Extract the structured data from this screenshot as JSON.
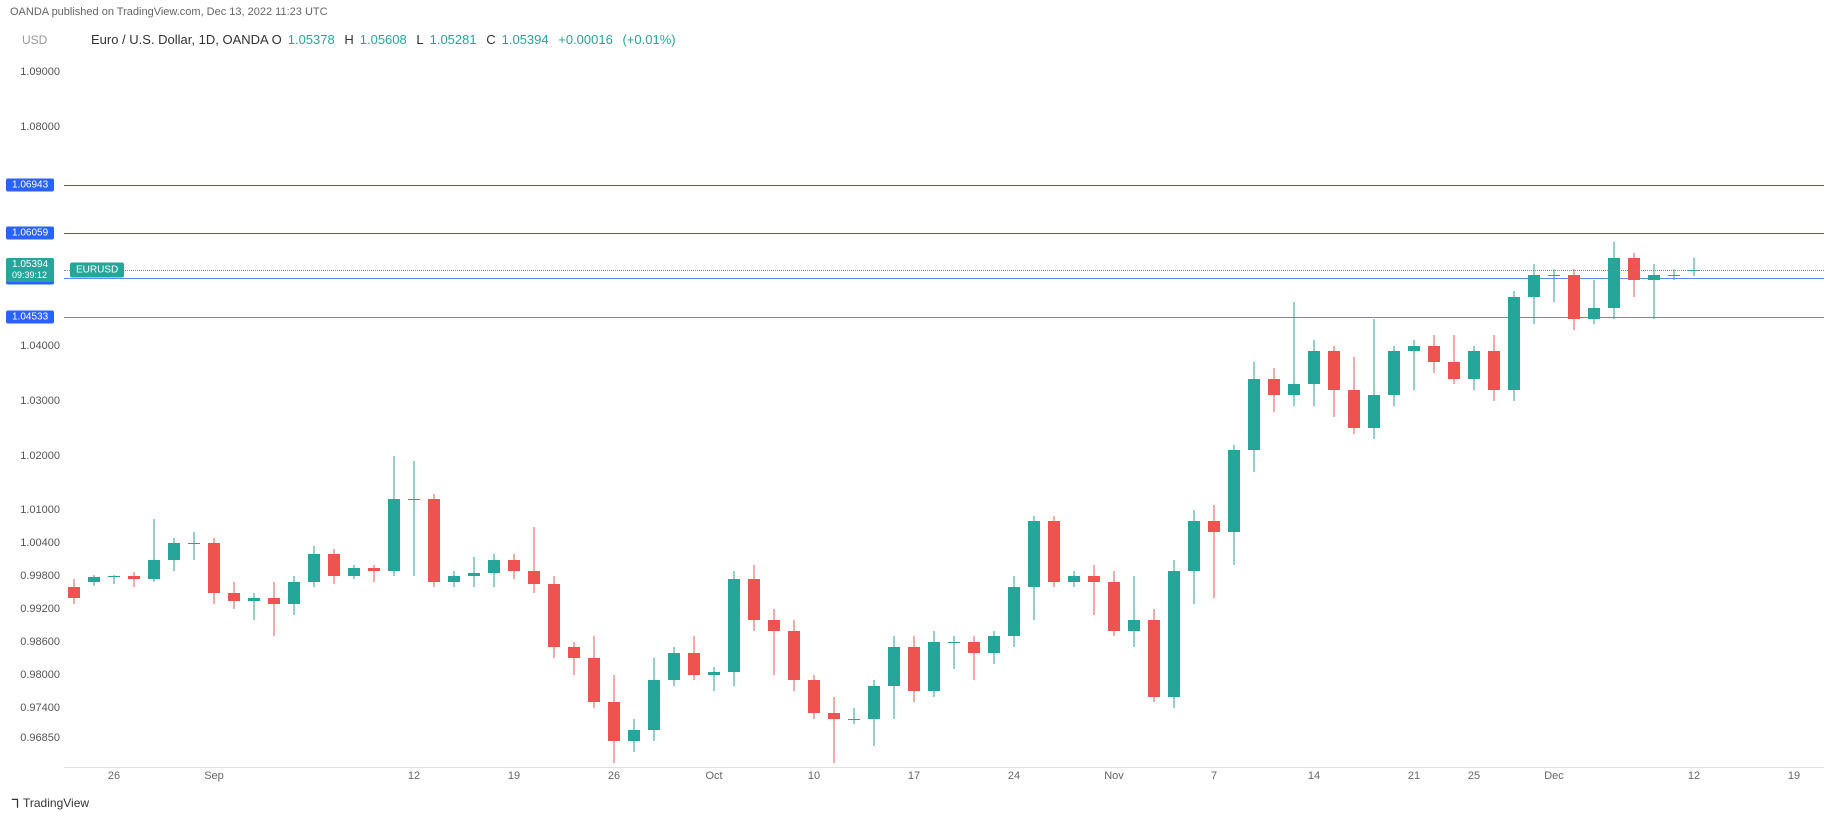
{
  "meta": {
    "publisher": "OANDA published on TradingView.com, Dec 13, 2022 11:23 UTC",
    "footer": "TradingView",
    "currency_label": "USD",
    "symbol_title": "Euro / U.S. Dollar, 1D, OANDA",
    "open_label": "O",
    "open_val": "1.05378",
    "high_label": "H",
    "high_val": "1.05608",
    "low_label": "L",
    "low_val": "1.05281",
    "close_label": "C",
    "close_val": "1.05394",
    "change_abs": "+0.00016",
    "change_pct": "(+0.01%)",
    "symbol_tag": "EURUSD",
    "countdown": "09:39:12"
  },
  "chart": {
    "type": "candlestick",
    "colors": {
      "up": "#26a69a",
      "down": "#ef5350",
      "hline_blue": "#2962ff",
      "hline_light": "#5b8def",
      "price_tag_green": "#26a69a",
      "price_tag_blue": "#2962ff",
      "grid": "#f0f0f0"
    },
    "y_axis": {
      "min": 0.963,
      "max": 1.094,
      "ticks": [
        {
          "v": 1.09,
          "label": "1.09000"
        },
        {
          "v": 1.08,
          "label": "1.08000"
        },
        {
          "v": 1.04,
          "label": "1.04000"
        },
        {
          "v": 1.03,
          "label": "1.03000"
        },
        {
          "v": 1.02,
          "label": "1.02000"
        },
        {
          "v": 1.01,
          "label": "1.01000"
        },
        {
          "v": 1.004,
          "label": "1.00400"
        },
        {
          "v": 0.998,
          "label": "0.99800"
        },
        {
          "v": 0.992,
          "label": "0.99200"
        },
        {
          "v": 0.986,
          "label": "0.98600"
        },
        {
          "v": 0.98,
          "label": "0.98000"
        },
        {
          "v": 0.974,
          "label": "0.97400"
        },
        {
          "v": 0.9685,
          "label": "0.96850"
        }
      ]
    },
    "x_axis": {
      "labels": [
        {
          "i": 2,
          "label": "26"
        },
        {
          "i": 7,
          "label": "Sep"
        },
        {
          "i": 17,
          "label": "12"
        },
        {
          "i": 22,
          "label": "19"
        },
        {
          "i": 27,
          "label": "26"
        },
        {
          "i": 32,
          "label": "Oct"
        },
        {
          "i": 37,
          "label": "10"
        },
        {
          "i": 42,
          "label": "17"
        },
        {
          "i": 47,
          "label": "24"
        },
        {
          "i": 52,
          "label": "Nov"
        },
        {
          "i": 57,
          "label": "7"
        },
        {
          "i": 62,
          "label": "14"
        },
        {
          "i": 67,
          "label": "21"
        },
        {
          "i": 70,
          "label": "25"
        },
        {
          "i": 74,
          "label": "Dec"
        },
        {
          "i": 81,
          "label": "12"
        },
        {
          "i": 86,
          "label": "19"
        }
      ],
      "count": 88
    },
    "horizontal_lines": [
      {
        "v": 1.06943,
        "label": "1.06943",
        "color": "#2962ff",
        "tag_bg": "#2962ff"
      },
      {
        "v": 1.06059,
        "label": "1.06059",
        "color": "#2962ff",
        "tag_bg": "#2962ff"
      },
      {
        "v": 1.05249,
        "label": "1.05249",
        "color": "#5b8def",
        "tag_bg": "#2962ff"
      },
      {
        "v": 1.04533,
        "label": "1.04533",
        "color": "#5b8def",
        "tag_bg": "#2962ff"
      }
    ],
    "current_price": {
      "v": 1.05394,
      "label": "1.05394"
    },
    "candles": [
      {
        "o": 0.996,
        "h": 0.9975,
        "l": 0.993,
        "c": 0.994
      },
      {
        "o": 0.997,
        "h": 0.9982,
        "l": 0.9962,
        "c": 0.9978
      },
      {
        "o": 0.9978,
        "h": 0.9982,
        "l": 0.9965,
        "c": 0.998
      },
      {
        "o": 0.998,
        "h": 0.9988,
        "l": 0.996,
        "c": 0.9975
      },
      {
        "o": 0.9975,
        "h": 1.0085,
        "l": 0.997,
        "c": 1.001
      },
      {
        "o": 1.001,
        "h": 1.005,
        "l": 0.999,
        "c": 1.004
      },
      {
        "o": 1.004,
        "h": 1.006,
        "l": 1.001,
        "c": 1.004
      },
      {
        "o": 1.004,
        "h": 1.005,
        "l": 0.993,
        "c": 0.995
      },
      {
        "o": 0.995,
        "h": 0.997,
        "l": 0.992,
        "c": 0.9935
      },
      {
        "o": 0.9935,
        "h": 0.995,
        "l": 0.99,
        "c": 0.994
      },
      {
        "o": 0.994,
        "h": 0.997,
        "l": 0.987,
        "c": 0.993
      },
      {
        "o": 0.993,
        "h": 0.998,
        "l": 0.991,
        "c": 0.997
      },
      {
        "o": 0.997,
        "h": 1.0035,
        "l": 0.996,
        "c": 1.002
      },
      {
        "o": 1.002,
        "h": 1.003,
        "l": 0.9965,
        "c": 0.998
      },
      {
        "o": 0.998,
        "h": 1.0,
        "l": 0.9975,
        "c": 0.9995
      },
      {
        "o": 0.9995,
        "h": 1.0,
        "l": 0.997,
        "c": 0.999
      },
      {
        "o": 0.999,
        "h": 1.02,
        "l": 0.998,
        "c": 1.012
      },
      {
        "o": 1.012,
        "h": 1.019,
        "l": 0.998,
        "c": 1.012
      },
      {
        "o": 1.012,
        "h": 1.013,
        "l": 0.996,
        "c": 0.997
      },
      {
        "o": 0.997,
        "h": 0.999,
        "l": 0.996,
        "c": 0.998
      },
      {
        "o": 0.998,
        "h": 1.0015,
        "l": 0.996,
        "c": 0.9985
      },
      {
        "o": 0.9985,
        "h": 1.002,
        "l": 0.996,
        "c": 1.001
      },
      {
        "o": 1.001,
        "h": 1.002,
        "l": 0.9975,
        "c": 0.999
      },
      {
        "o": 0.999,
        "h": 1.007,
        "l": 0.995,
        "c": 0.9965
      },
      {
        "o": 0.9965,
        "h": 0.998,
        "l": 0.983,
        "c": 0.985
      },
      {
        "o": 0.985,
        "h": 0.986,
        "l": 0.98,
        "c": 0.983
      },
      {
        "o": 0.983,
        "h": 0.987,
        "l": 0.974,
        "c": 0.975
      },
      {
        "o": 0.975,
        "h": 0.98,
        "l": 0.964,
        "c": 0.968
      },
      {
        "o": 0.968,
        "h": 0.972,
        "l": 0.966,
        "c": 0.97
      },
      {
        "o": 0.97,
        "h": 0.983,
        "l": 0.968,
        "c": 0.979
      },
      {
        "o": 0.979,
        "h": 0.985,
        "l": 0.978,
        "c": 0.984
      },
      {
        "o": 0.984,
        "h": 0.987,
        "l": 0.979,
        "c": 0.98
      },
      {
        "o": 0.98,
        "h": 0.9815,
        "l": 0.977,
        "c": 0.9805
      },
      {
        "o": 0.9805,
        "h": 0.999,
        "l": 0.978,
        "c": 0.9975
      },
      {
        "o": 0.9975,
        "h": 1.0,
        "l": 0.988,
        "c": 0.99
      },
      {
        "o": 0.99,
        "h": 0.992,
        "l": 0.98,
        "c": 0.988
      },
      {
        "o": 0.988,
        "h": 0.99,
        "l": 0.977,
        "c": 0.979
      },
      {
        "o": 0.979,
        "h": 0.98,
        "l": 0.972,
        "c": 0.973
      },
      {
        "o": 0.973,
        "h": 0.976,
        "l": 0.964,
        "c": 0.972
      },
      {
        "o": 0.972,
        "h": 0.974,
        "l": 0.971,
        "c": 0.972
      },
      {
        "o": 0.972,
        "h": 0.979,
        "l": 0.967,
        "c": 0.978
      },
      {
        "o": 0.978,
        "h": 0.987,
        "l": 0.972,
        "c": 0.985
      },
      {
        "o": 0.985,
        "h": 0.987,
        "l": 0.975,
        "c": 0.977
      },
      {
        "o": 0.977,
        "h": 0.988,
        "l": 0.976,
        "c": 0.986
      },
      {
        "o": 0.986,
        "h": 0.987,
        "l": 0.981,
        "c": 0.986
      },
      {
        "o": 0.986,
        "h": 0.987,
        "l": 0.979,
        "c": 0.984
      },
      {
        "o": 0.984,
        "h": 0.988,
        "l": 0.982,
        "c": 0.987
      },
      {
        "o": 0.987,
        "h": 0.998,
        "l": 0.985,
        "c": 0.996
      },
      {
        "o": 0.996,
        "h": 1.009,
        "l": 0.99,
        "c": 1.008
      },
      {
        "o": 1.008,
        "h": 1.009,
        "l": 0.996,
        "c": 0.997
      },
      {
        "o": 0.997,
        "h": 0.999,
        "l": 0.996,
        "c": 0.998
      },
      {
        "o": 0.998,
        "h": 1.0,
        "l": 0.991,
        "c": 0.997
      },
      {
        "o": 0.997,
        "h": 0.999,
        "l": 0.987,
        "c": 0.988
      },
      {
        "o": 0.988,
        "h": 0.998,
        "l": 0.985,
        "c": 0.99
      },
      {
        "o": 0.99,
        "h": 0.992,
        "l": 0.975,
        "c": 0.976
      },
      {
        "o": 0.976,
        "h": 1.001,
        "l": 0.974,
        "c": 0.999
      },
      {
        "o": 0.999,
        "h": 1.01,
        "l": 0.993,
        "c": 1.008
      },
      {
        "o": 1.008,
        "h": 1.011,
        "l": 0.994,
        "c": 1.006
      },
      {
        "o": 1.006,
        "h": 1.022,
        "l": 1.0,
        "c": 1.021
      },
      {
        "o": 1.021,
        "h": 1.037,
        "l": 1.017,
        "c": 1.034
      },
      {
        "o": 1.034,
        "h": 1.036,
        "l": 1.028,
        "c": 1.031
      },
      {
        "o": 1.031,
        "h": 1.048,
        "l": 1.029,
        "c": 1.033
      },
      {
        "o": 1.033,
        "h": 1.041,
        "l": 1.029,
        "c": 1.039
      },
      {
        "o": 1.039,
        "h": 1.04,
        "l": 1.027,
        "c": 1.032
      },
      {
        "o": 1.032,
        "h": 1.038,
        "l": 1.024,
        "c": 1.025
      },
      {
        "o": 1.025,
        "h": 1.045,
        "l": 1.023,
        "c": 1.031
      },
      {
        "o": 1.031,
        "h": 1.04,
        "l": 1.029,
        "c": 1.039
      },
      {
        "o": 1.039,
        "h": 1.041,
        "l": 1.032,
        "c": 1.04
      },
      {
        "o": 1.04,
        "h": 1.042,
        "l": 1.035,
        "c": 1.037
      },
      {
        "o": 1.037,
        "h": 1.042,
        "l": 1.033,
        "c": 1.034
      },
      {
        "o": 1.034,
        "h": 1.04,
        "l": 1.032,
        "c": 1.039
      },
      {
        "o": 1.039,
        "h": 1.042,
        "l": 1.03,
        "c": 1.032
      },
      {
        "o": 1.032,
        "h": 1.05,
        "l": 1.03,
        "c": 1.049
      },
      {
        "o": 1.049,
        "h": 1.055,
        "l": 1.044,
        "c": 1.053
      },
      {
        "o": 1.053,
        "h": 1.054,
        "l": 1.048,
        "c": 1.053
      },
      {
        "o": 1.053,
        "h": 1.054,
        "l": 1.043,
        "c": 1.045
      },
      {
        "o": 1.045,
        "h": 1.052,
        "l": 1.044,
        "c": 1.047
      },
      {
        "o": 1.047,
        "h": 1.059,
        "l": 1.045,
        "c": 1.056
      },
      {
        "o": 1.056,
        "h": 1.057,
        "l": 1.049,
        "c": 1.052
      },
      {
        "o": 1.052,
        "h": 1.055,
        "l": 1.045,
        "c": 1.053
      },
      {
        "o": 1.053,
        "h": 1.054,
        "l": 1.052,
        "c": 1.053
      },
      {
        "o": 1.0538,
        "h": 1.0561,
        "l": 1.0528,
        "c": 1.0539
      }
    ]
  }
}
